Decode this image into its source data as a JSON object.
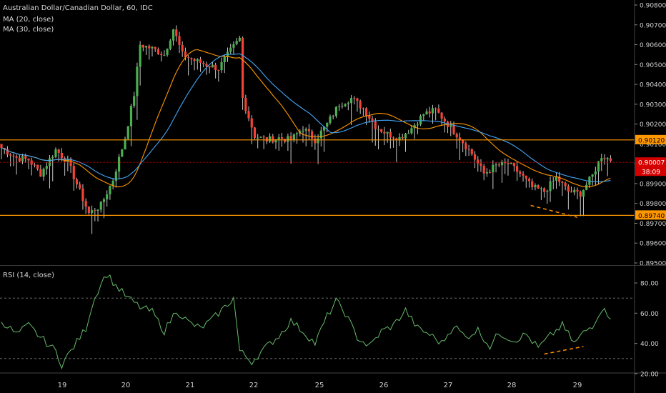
{
  "header": {
    "title": "Australian Dollar/Canadian Dollar, 60, IDC",
    "ma20_label": "MA (20, close)",
    "ma30_label": "MA (30, close)",
    "rsi_label": "RSI (14, close)"
  },
  "colors": {
    "up": "#4caf50",
    "down": "#f44336",
    "wick": "#c8c8c8",
    "ma20": "#ff9800",
    "ma30": "#42a5f5",
    "hline": "#ff9800",
    "rsi": "#66bb6a",
    "annotation": "#ff8f00",
    "current": "#d50000"
  },
  "chart_data": [
    {
      "type": "candlestick",
      "title": "Australian Dollar/Canadian Dollar, 60, IDC",
      "x_ticks": [
        "19",
        "20",
        "21",
        "22",
        "25",
        "26",
        "27",
        "28",
        "29"
      ],
      "y_ticks": [
        "0.89500",
        "0.89600",
        "0.89700",
        "0.89800",
        "0.89900",
        "0.90000",
        "0.90100",
        "0.90200",
        "0.90300",
        "0.90400",
        "0.90500",
        "0.90600",
        "0.90700",
        "0.90800"
      ],
      "ylim": [
        0.895,
        0.908
      ],
      "grid": false,
      "horizontal_levels": [
        {
          "value": 0.9012,
          "label": "0.90120"
        },
        {
          "value": 0.8974,
          "label": "0.89740"
        }
      ],
      "current_price": {
        "value": 0.90007,
        "label": "0.90007",
        "countdown": "38:09"
      },
      "approx_close_path": [
        [
          0,
          0.9008
        ],
        [
          5,
          0.9003
        ],
        [
          9,
          0.9002
        ],
        [
          13,
          0.8995
        ],
        [
          18,
          0.9007
        ],
        [
          22,
          0.9001
        ],
        [
          26,
          0.8986
        ],
        [
          29,
          0.8975
        ],
        [
          33,
          0.8979
        ],
        [
          37,
          0.8992
        ],
        [
          41,
          0.9013
        ],
        [
          44,
          0.9035
        ],
        [
          46,
          0.906
        ],
        [
          50,
          0.9058
        ],
        [
          54,
          0.9055
        ],
        [
          57,
          0.9068
        ],
        [
          60,
          0.9055
        ],
        [
          64,
          0.9052
        ],
        [
          68,
          0.905
        ],
        [
          72,
          0.9048
        ],
        [
          76,
          0.9057
        ],
        [
          79,
          0.9063
        ],
        [
          80,
          0.9033
        ],
        [
          84,
          0.9014
        ],
        [
          88,
          0.9012
        ],
        [
          92,
          0.9013
        ],
        [
          96,
          0.9012
        ],
        [
          100,
          0.9018
        ],
        [
          104,
          0.9012
        ],
        [
          108,
          0.902
        ],
        [
          112,
          0.903
        ],
        [
          116,
          0.9033
        ],
        [
          120,
          0.9028
        ],
        [
          124,
          0.9019
        ],
        [
          128,
          0.9015
        ],
        [
          132,
          0.9013
        ],
        [
          136,
          0.9018
        ],
        [
          140,
          0.9025
        ],
        [
          144,
          0.9027
        ],
        [
          148,
          0.902
        ],
        [
          152,
          0.9013
        ],
        [
          156,
          0.9005
        ],
        [
          160,
          0.8995
        ],
        [
          164,
          0.8999
        ],
        [
          168,
          0.9
        ],
        [
          172,
          0.8995
        ],
        [
          176,
          0.8988
        ],
        [
          180,
          0.8986
        ],
        [
          184,
          0.8993
        ],
        [
          188,
          0.8986
        ],
        [
          192,
          0.8985
        ],
        [
          196,
          0.8994
        ],
        [
          199,
          0.9004
        ],
        [
          202,
          0.9002
        ]
      ],
      "annotations": [
        {
          "type": "dashed-line",
          "from": [
            175.5,
            0.8979
          ],
          "to": [
            191,
            0.8973
          ]
        }
      ]
    },
    {
      "type": "line",
      "title": "RSI (14, close)",
      "x_ticks": [
        "19",
        "20",
        "21",
        "22",
        "25",
        "26",
        "27",
        "28",
        "29"
      ],
      "y_ticks": [
        "20.00",
        "40.00",
        "60.00",
        "80.00"
      ],
      "ylim": [
        18,
        89
      ],
      "reference_lines": [
        70,
        30
      ],
      "approx_path": [
        [
          0,
          55
        ],
        [
          5,
          46
        ],
        [
          9,
          52
        ],
        [
          13,
          44
        ],
        [
          18,
          35
        ],
        [
          20,
          26
        ],
        [
          24,
          38
        ],
        [
          28,
          50
        ],
        [
          30,
          65
        ],
        [
          33,
          80
        ],
        [
          35,
          86
        ],
        [
          38,
          78
        ],
        [
          42,
          70
        ],
        [
          46,
          64
        ],
        [
          50,
          61
        ],
        [
          54,
          48
        ],
        [
          58,
          62
        ],
        [
          62,
          54
        ],
        [
          66,
          50
        ],
        [
          70,
          56
        ],
        [
          74,
          64
        ],
        [
          77,
          70
        ],
        [
          79,
          35
        ],
        [
          83,
          28
        ],
        [
          88,
          38
        ],
        [
          92,
          45
        ],
        [
          96,
          55
        ],
        [
          100,
          48
        ],
        [
          104,
          40
        ],
        [
          108,
          58
        ],
        [
          111,
          68
        ],
        [
          114,
          60
        ],
        [
          118,
          44
        ],
        [
          122,
          38
        ],
        [
          126,
          48
        ],
        [
          130,
          52
        ],
        [
          134,
          62
        ],
        [
          138,
          50
        ],
        [
          142,
          46
        ],
        [
          146,
          40
        ],
        [
          150,
          52
        ],
        [
          154,
          44
        ],
        [
          158,
          49
        ],
        [
          162,
          38
        ],
        [
          165,
          47
        ],
        [
          170,
          42
        ],
        [
          174,
          46
        ],
        [
          178,
          37
        ],
        [
          182,
          45
        ],
        [
          186,
          52
        ],
        [
          190,
          40
        ],
        [
          193,
          47
        ],
        [
          196,
          52
        ],
        [
          199,
          63
        ],
        [
          202,
          58
        ]
      ],
      "annotations": [
        {
          "type": "dashed-line",
          "from": [
            180,
            33
          ],
          "to": [
            193,
            38
          ]
        }
      ]
    }
  ]
}
